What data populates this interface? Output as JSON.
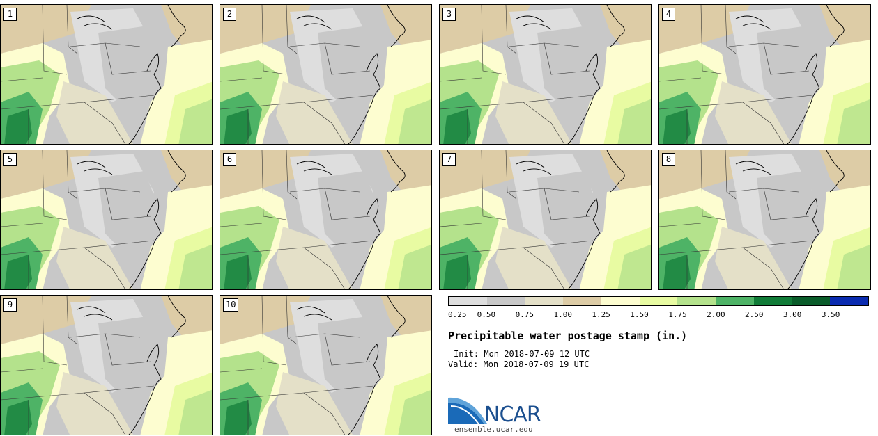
{
  "panels": [
    {
      "label": "1"
    },
    {
      "label": "2"
    },
    {
      "label": "3"
    },
    {
      "label": "4"
    },
    {
      "label": "5"
    },
    {
      "label": "6"
    },
    {
      "label": "7"
    },
    {
      "label": "8"
    },
    {
      "label": "9"
    },
    {
      "label": "10"
    }
  ],
  "legend": {
    "colors": [
      "#dedede",
      "#c8c8c8",
      "#e4e0c8",
      "#ddcca6",
      "#fdfdd0",
      "#e8fba2",
      "#b4e28c",
      "#4eb366",
      "#107b37",
      "#0a5c2a",
      "#0a2bb0"
    ],
    "tick_labels": [
      "0.25",
      "0.50",
      "0.75",
      "1.00",
      "1.25",
      "1.50",
      "1.75",
      "2.00",
      "2.50",
      "3.00",
      "3.50"
    ]
  },
  "title": "Precipitable water postage stamp (in.)",
  "init_text": "Init: Mon 2018-07-09 12 UTC",
  "valid_text": "Valid: Mon 2018-07-09 19 UTC",
  "logo": {
    "name": "NCAR",
    "url": "ensemble.ucar.edu"
  }
}
